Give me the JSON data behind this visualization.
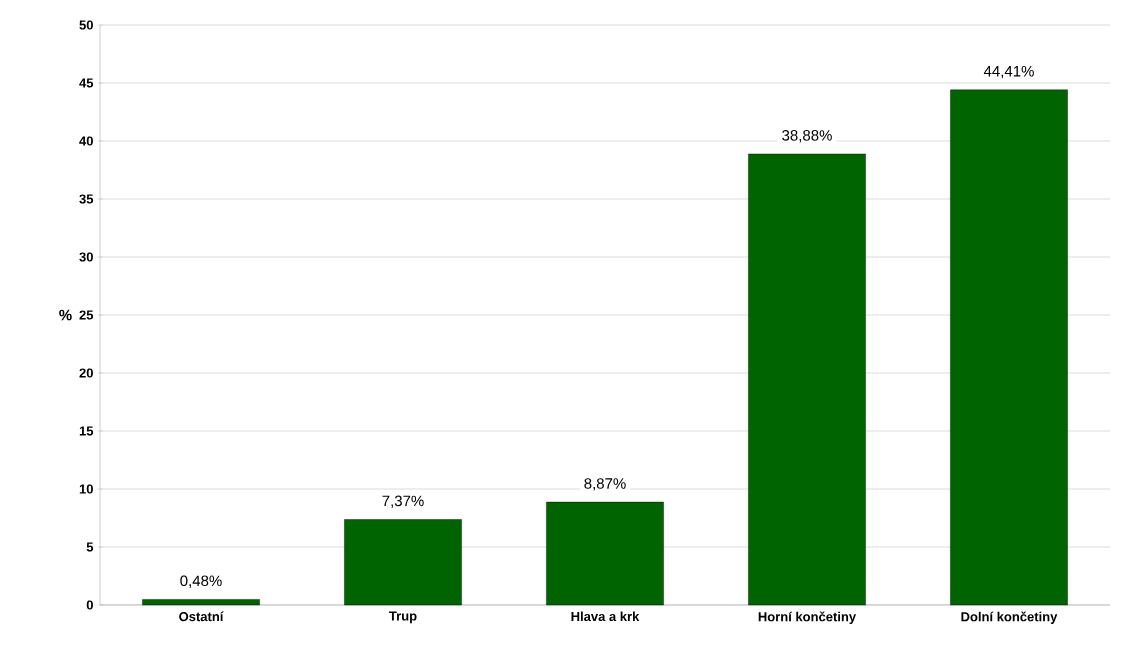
{
  "chart_data": {
    "type": "bar",
    "ylabel": "%",
    "categories": [
      "Ostatní",
      "Trup",
      "Hlava a krk",
      "Horní končetiny",
      "Dolní končetiny"
    ],
    "values": [
      0.48,
      7.37,
      8.87,
      38.88,
      44.41
    ],
    "value_labels": [
      "0,48%",
      "7,37%",
      "8,87%",
      "38,88%",
      "44,41%"
    ],
    "color": "#006400",
    "ylim": [
      0,
      50
    ],
    "yticks": [
      0,
      5,
      10,
      15,
      20,
      25,
      30,
      35,
      40,
      45,
      50
    ],
    "grid": "y"
  }
}
